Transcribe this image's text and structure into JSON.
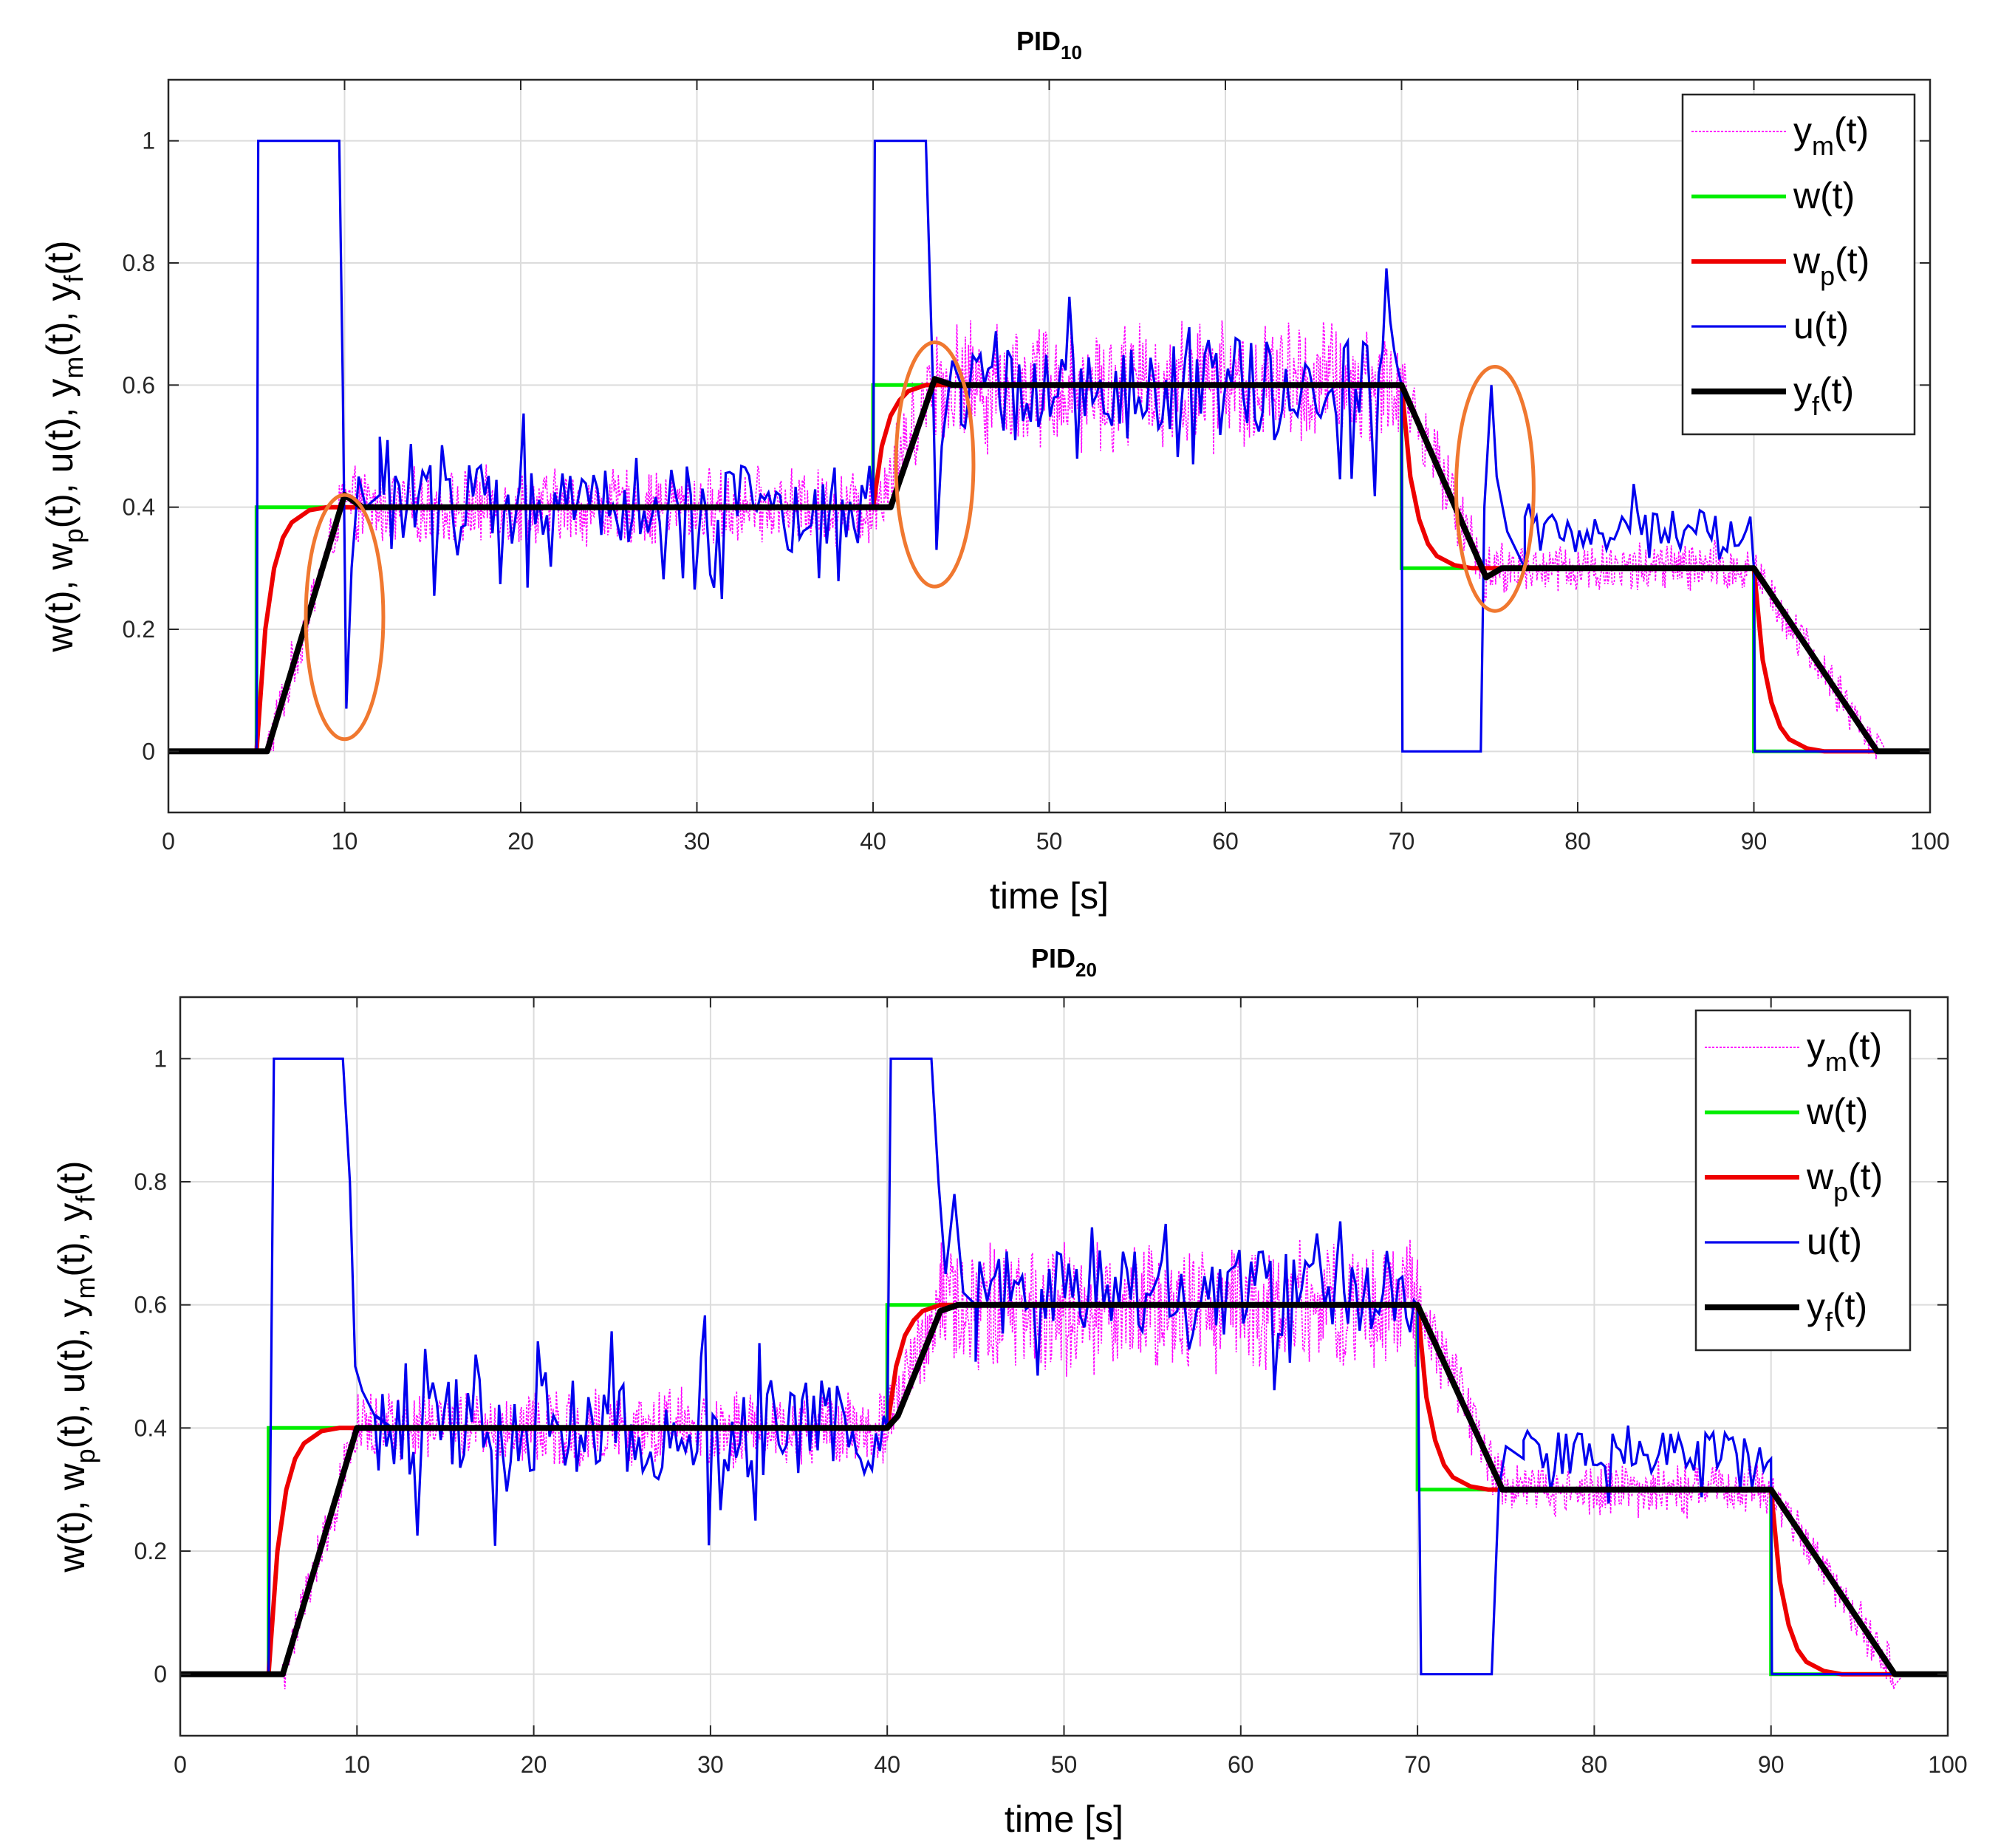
{
  "chart_data": [
    {
      "type": "line",
      "title": "PID",
      "title_sub": "10",
      "xlabel": "time [s]",
      "ylabel_parts": [
        {
          "t": "w(t), w",
          "s": false
        },
        {
          "t": "p",
          "s": true
        },
        {
          "t": "(t), u(t), y",
          "s": false
        },
        {
          "t": "m",
          "s": true
        },
        {
          "t": "(t), y",
          "s": false
        },
        {
          "t": "f",
          "s": true
        },
        {
          "t": "(t)",
          "s": false
        }
      ],
      "xlim": [
        0,
        100
      ],
      "ylim": [
        -0.1,
        1.1
      ],
      "xticks": [
        0,
        10,
        20,
        30,
        40,
        50,
        60,
        70,
        80,
        90,
        100
      ],
      "yticks": [
        0,
        0.2,
        0.4,
        0.6,
        0.8,
        1
      ],
      "ytick_labels": [
        "0",
        "0.2",
        "0.4",
        "0.6",
        "0.8",
        "1"
      ],
      "grid": true,
      "legend_position": "top-right",
      "colors": {
        "ym": "#ff00ff",
        "w": "#00ee00",
        "wp": "#ee0000",
        "u": "#0000ee",
        "yf": "#000000",
        "highlight": "#f07830"
      },
      "series": [
        {
          "key": "w",
          "name": "w(t)",
          "label_main": "w",
          "label_sub": "",
          "label_tail": "(t)",
          "points": [
            [
              0,
              0
            ],
            [
              5,
              0
            ],
            [
              5,
              0.4
            ],
            [
              40,
              0.4
            ],
            [
              40,
              0.6
            ],
            [
              70,
              0.6
            ],
            [
              70,
              0.3
            ],
            [
              90,
              0.3
            ],
            [
              90,
              0
            ],
            [
              100,
              0
            ]
          ]
        },
        {
          "key": "wp",
          "name": "wp(t)",
          "label_main": "w",
          "label_sub": "p",
          "label_tail": "(t)",
          "points": [
            [
              0,
              0
            ],
            [
              5,
              0
            ],
            [
              5.5,
              0.2
            ],
            [
              6,
              0.3
            ],
            [
              6.5,
              0.35
            ],
            [
              7,
              0.375
            ],
            [
              8,
              0.395
            ],
            [
              9,
              0.4
            ],
            [
              40,
              0.4
            ],
            [
              40.5,
              0.5
            ],
            [
              41,
              0.55
            ],
            [
              41.5,
              0.575
            ],
            [
              42,
              0.59
            ],
            [
              43,
              0.6
            ],
            [
              70,
              0.6
            ],
            [
              70.5,
              0.45
            ],
            [
              71,
              0.38
            ],
            [
              71.5,
              0.34
            ],
            [
              72,
              0.32
            ],
            [
              73,
              0.305
            ],
            [
              74,
              0.3
            ],
            [
              90,
              0.3
            ],
            [
              90.5,
              0.15
            ],
            [
              91,
              0.08
            ],
            [
              91.5,
              0.04
            ],
            [
              92,
              0.02
            ],
            [
              93,
              0.005
            ],
            [
              94,
              0
            ],
            [
              100,
              0
            ]
          ]
        },
        {
          "key": "u",
          "name": "u(t)",
          "label_main": "u",
          "label_sub": "",
          "label_tail": "(t)",
          "points": [
            [
              0,
              0
            ],
            [
              5,
              0
            ],
            [
              5.1,
              1
            ],
            [
              9.7,
              1
            ],
            [
              9.9,
              0.6
            ],
            [
              10.1,
              0.07
            ],
            [
              10.4,
              0.3
            ],
            [
              10.8,
              0.45
            ],
            [
              11.2,
              0.4
            ],
            [
              12,
              0.42
            ],
            [
              40,
              0.4
            ],
            [
              40.1,
              1
            ],
            [
              43,
              1
            ],
            [
              43.4,
              0.6
            ],
            [
              43.6,
              0.33
            ],
            [
              43.9,
              0.5
            ],
            [
              44.5,
              0.64
            ],
            [
              45,
              0.6
            ],
            [
              70,
              0.6
            ],
            [
              70.05,
              0
            ],
            [
              74.5,
              0
            ],
            [
              74.7,
              0.4
            ],
            [
              75.1,
              0.6
            ],
            [
              75.4,
              0.45
            ],
            [
              76,
              0.36
            ],
            [
              77,
              0.3
            ],
            [
              90,
              0.3
            ],
            [
              90.05,
              0
            ],
            [
              100,
              0
            ]
          ],
          "noise": [
            {
              "t0": 12,
              "t1": 39.8,
              "base": 0.4,
              "amp": 0.07
            },
            {
              "t0": 45,
              "t1": 69.8,
              "base": 0.6,
              "amp": 0.08
            },
            {
              "t0": 77,
              "t1": 89.8,
              "base": 0.36,
              "amp": 0.035
            }
          ]
        },
        {
          "key": "yf",
          "name": "yf(t)",
          "label_main": "y",
          "label_sub": "f",
          "label_tail": "(t)",
          "points": [
            [
              0,
              0
            ],
            [
              5,
              0
            ],
            [
              5.6,
              0
            ],
            [
              10,
              0.42
            ],
            [
              11,
              0.4
            ],
            [
              40,
              0.4
            ],
            [
              41,
              0.4
            ],
            [
              43.5,
              0.61
            ],
            [
              44.5,
              0.6
            ],
            [
              70,
              0.6
            ],
            [
              74.8,
              0.285
            ],
            [
              75.7,
              0.3
            ],
            [
              90,
              0.3
            ],
            [
              97,
              0
            ],
            [
              100,
              0
            ]
          ]
        },
        {
          "key": "ym",
          "name": "ym(t)",
          "label_main": "y",
          "label_sub": "m",
          "label_tail": "(t)",
          "points": [],
          "noise_band": [
            {
              "t0": 5.6,
              "t1": 10,
              "from": 0,
              "to": 0.42,
              "amp": 0.05
            },
            {
              "t0": 10,
              "t1": 40,
              "from": 0.4,
              "to": 0.4,
              "amp": 0.07
            },
            {
              "t0": 40,
              "t1": 43.5,
              "from": 0.4,
              "to": 0.61,
              "amp": 0.08
            },
            {
              "t0": 43.5,
              "t1": 70,
              "from": 0.6,
              "to": 0.6,
              "amp": 0.12
            },
            {
              "t0": 70,
              "t1": 74.8,
              "from": 0.6,
              "to": 0.29,
              "amp": 0.06
            },
            {
              "t0": 74.8,
              "t1": 90,
              "from": 0.3,
              "to": 0.3,
              "amp": 0.05
            },
            {
              "t0": 90,
              "t1": 97,
              "from": 0.3,
              "to": 0,
              "amp": 0.04
            }
          ]
        }
      ],
      "annotations": [
        {
          "type": "ellipse",
          "center": [
            10,
            0.22
          ],
          "radius_x": 2.2,
          "radius_y": 0.2
        },
        {
          "type": "ellipse",
          "center": [
            43.5,
            0.47
          ],
          "radius_x": 2.2,
          "radius_y": 0.2
        },
        {
          "type": "ellipse",
          "center": [
            75.3,
            0.43
          ],
          "radius_x": 2.2,
          "radius_y": 0.2
        }
      ]
    },
    {
      "type": "line",
      "title": "PID",
      "title_sub": "20",
      "xlabel": "time [s]",
      "ylabel_parts": [
        {
          "t": "w(t), w",
          "s": false
        },
        {
          "t": "p",
          "s": true
        },
        {
          "t": "(t), u(t), y",
          "s": false
        },
        {
          "t": "m",
          "s": true
        },
        {
          "t": "(t), y",
          "s": false
        },
        {
          "t": "f",
          "s": true
        },
        {
          "t": "(t)",
          "s": false
        }
      ],
      "xlim": [
        0,
        100
      ],
      "ylim": [
        -0.1,
        1.1
      ],
      "xticks": [
        0,
        10,
        20,
        30,
        40,
        50,
        60,
        70,
        80,
        90,
        100
      ],
      "yticks": [
        0,
        0.2,
        0.4,
        0.6,
        0.8,
        1
      ],
      "ytick_labels": [
        "0",
        "0.2",
        "0.4",
        "0.6",
        "0.8",
        "1"
      ],
      "grid": true,
      "legend_position": "top-right",
      "colors": {
        "ym": "#ff00ff",
        "w": "#00ee00",
        "wp": "#ee0000",
        "u": "#0000ee",
        "yf": "#000000",
        "highlight": "#f07830"
      },
      "series": [
        {
          "key": "w",
          "name": "w(t)",
          "label_main": "w",
          "label_sub": "",
          "label_tail": "(t)",
          "points": [
            [
              0,
              0
            ],
            [
              5,
              0
            ],
            [
              5,
              0.4
            ],
            [
              40,
              0.4
            ],
            [
              40,
              0.6
            ],
            [
              70,
              0.6
            ],
            [
              70,
              0.3
            ],
            [
              90,
              0.3
            ],
            [
              90,
              0
            ],
            [
              100,
              0
            ]
          ]
        },
        {
          "key": "wp",
          "name": "wp(t)",
          "label_main": "w",
          "label_sub": "p",
          "label_tail": "(t)",
          "points": [
            [
              0,
              0
            ],
            [
              5,
              0
            ],
            [
              5.5,
              0.2
            ],
            [
              6,
              0.3
            ],
            [
              6.5,
              0.35
            ],
            [
              7,
              0.375
            ],
            [
              8,
              0.395
            ],
            [
              9,
              0.4
            ],
            [
              40,
              0.4
            ],
            [
              40.5,
              0.5
            ],
            [
              41,
              0.55
            ],
            [
              41.5,
              0.575
            ],
            [
              42,
              0.59
            ],
            [
              43,
              0.6
            ],
            [
              70,
              0.6
            ],
            [
              70.5,
              0.45
            ],
            [
              71,
              0.38
            ],
            [
              71.5,
              0.34
            ],
            [
              72,
              0.32
            ],
            [
              73,
              0.305
            ],
            [
              74,
              0.3
            ],
            [
              90,
              0.3
            ],
            [
              90.5,
              0.15
            ],
            [
              91,
              0.08
            ],
            [
              91.5,
              0.04
            ],
            [
              92,
              0.02
            ],
            [
              93,
              0.005
            ],
            [
              94,
              0
            ],
            [
              100,
              0
            ]
          ]
        },
        {
          "key": "u",
          "name": "u(t)",
          "label_main": "u",
          "label_sub": "",
          "label_tail": "(t)",
          "points": [
            [
              0,
              0
            ],
            [
              5,
              0
            ],
            [
              5.3,
              1
            ],
            [
              9.2,
              1
            ],
            [
              9.6,
              0.8
            ],
            [
              9.9,
              0.5
            ],
            [
              10.3,
              0.46
            ],
            [
              11,
              0.42
            ],
            [
              12,
              0.4
            ],
            [
              40,
              0.4
            ],
            [
              40.2,
              1
            ],
            [
              42.5,
              1
            ],
            [
              42.9,
              0.8
            ],
            [
              43.3,
              0.65
            ],
            [
              43.8,
              0.78
            ],
            [
              44.3,
              0.62
            ],
            [
              45,
              0.6
            ],
            [
              70,
              0.6
            ],
            [
              70.2,
              0
            ],
            [
              74.2,
              0
            ],
            [
              74.6,
              0.3
            ],
            [
              75,
              0.37
            ],
            [
              76,
              0.35
            ],
            [
              90,
              0.35
            ],
            [
              90.05,
              0
            ],
            [
              100,
              0
            ]
          ],
          "noise": [
            {
              "t0": 11,
              "t1": 39.8,
              "base": 0.4,
              "amp": 0.08
            },
            {
              "t0": 45,
              "t1": 69.8,
              "base": 0.62,
              "amp": 0.07
            },
            {
              "t0": 76,
              "t1": 89.8,
              "base": 0.36,
              "amp": 0.035
            }
          ]
        },
        {
          "key": "yf",
          "name": "yf(t)",
          "label_main": "y",
          "label_sub": "f",
          "label_tail": "(t)",
          "points": [
            [
              0,
              0
            ],
            [
              5,
              0
            ],
            [
              5.8,
              0
            ],
            [
              10,
              0.4
            ],
            [
              40,
              0.4
            ],
            [
              40.6,
              0.42
            ],
            [
              43,
              0.59
            ],
            [
              44,
              0.6
            ],
            [
              70,
              0.6
            ],
            [
              74.8,
              0.3
            ],
            [
              90,
              0.3
            ],
            [
              97,
              0
            ],
            [
              100,
              0
            ]
          ]
        },
        {
          "key": "ym",
          "name": "ym(t)",
          "label_main": "y",
          "label_sub": "m",
          "label_tail": "(t)",
          "points": [],
          "noise_band": [
            {
              "t0": 5.8,
              "t1": 10,
              "from": 0,
              "to": 0.4,
              "amp": 0.05
            },
            {
              "t0": 10,
              "t1": 40,
              "from": 0.4,
              "to": 0.4,
              "amp": 0.07
            },
            {
              "t0": 40,
              "t1": 43,
              "from": 0.42,
              "to": 0.6,
              "amp": 0.08
            },
            {
              "t0": 43,
              "t1": 70,
              "from": 0.6,
              "to": 0.6,
              "amp": 0.12
            },
            {
              "t0": 70,
              "t1": 74.8,
              "from": 0.6,
              "to": 0.3,
              "amp": 0.06
            },
            {
              "t0": 74.8,
              "t1": 90,
              "from": 0.3,
              "to": 0.3,
              "amp": 0.05
            },
            {
              "t0": 90,
              "t1": 97,
              "from": 0.3,
              "to": 0,
              "amp": 0.04
            }
          ]
        }
      ],
      "annotations": []
    }
  ]
}
